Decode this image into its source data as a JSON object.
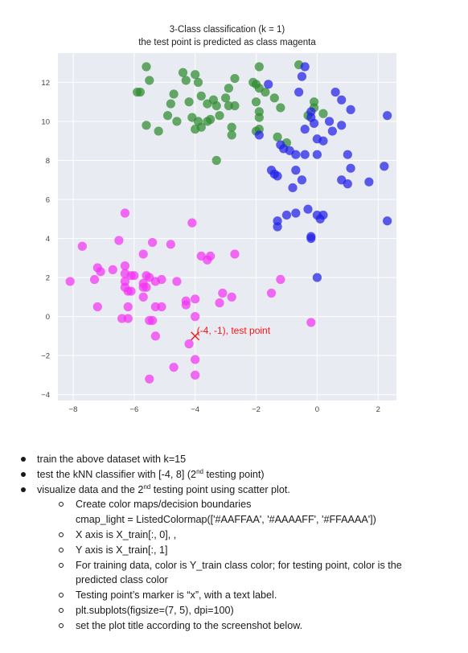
{
  "chart_data": {
    "type": "scatter",
    "title": "3-Class classification (k = 1)",
    "subtitle": "the test point is predicted as class magenta",
    "xlim": [
      -8.5,
      2.6
    ],
    "ylim": [
      -4.3,
      13.5
    ],
    "x_ticks": [
      -8,
      -6,
      -4,
      -2,
      0,
      2
    ],
    "y_ticks": [
      -4,
      -2,
      0,
      2,
      4,
      6,
      8,
      10,
      12
    ],
    "x_tick_labels": [
      "−8",
      "−6",
      "−4",
      "−2",
      "0",
      "2"
    ],
    "y_tick_labels": [
      "−4",
      "−2",
      "0",
      "2",
      "4",
      "6",
      "8",
      "10",
      "12"
    ],
    "grid": true,
    "background_color": "#E9EBF2",
    "series": [
      {
        "color": "#2E8B2E",
        "points": [
          [
            -5.6,
            12.8
          ],
          [
            -5.5,
            12.1
          ],
          [
            -4.4,
            12.5
          ],
          [
            -4.3,
            12.1
          ],
          [
            -4.0,
            12.4
          ],
          [
            -3.9,
            12.0
          ],
          [
            -5.9,
            11.5
          ],
          [
            -5.8,
            11.5
          ],
          [
            -4.7,
            11.4
          ],
          [
            -4.8,
            10.9
          ],
          [
            -4.2,
            11.0
          ],
          [
            -3.8,
            11.3
          ],
          [
            -3.6,
            10.9
          ],
          [
            -3.4,
            11.1
          ],
          [
            -3.3,
            10.8
          ],
          [
            -3.0,
            11.2
          ],
          [
            -2.9,
            11.7
          ],
          [
            -2.7,
            12.2
          ],
          [
            -2.9,
            10.8
          ],
          [
            -2.7,
            10.8
          ],
          [
            -2.1,
            12.0
          ],
          [
            -2.0,
            11.9
          ],
          [
            -1.9,
            11.7
          ],
          [
            -1.9,
            12.8
          ],
          [
            -1.7,
            11.5
          ],
          [
            -1.4,
            11.2
          ],
          [
            -0.6,
            12.9
          ],
          [
            -2.0,
            11.0
          ],
          [
            -1.2,
            10.7
          ],
          [
            -1.9,
            10.5
          ],
          [
            -1.9,
            10.2
          ],
          [
            -0.1,
            11.0
          ],
          [
            -0.1,
            10.7
          ],
          [
            -0.3,
            10.3
          ],
          [
            0.2,
            10.4
          ],
          [
            -5.6,
            9.8
          ],
          [
            -5.2,
            9.5
          ],
          [
            -4.9,
            10.3
          ],
          [
            -4.6,
            10.0
          ],
          [
            -4.1,
            10.2
          ],
          [
            -3.9,
            10.0
          ],
          [
            -3.6,
            10.0
          ],
          [
            -3.5,
            10.1
          ],
          [
            -3.2,
            10.3
          ],
          [
            -4.0,
            9.6
          ],
          [
            -3.8,
            9.7
          ],
          [
            -2.8,
            9.7
          ],
          [
            -2.8,
            9.3
          ],
          [
            -2.0,
            9.5
          ],
          [
            -1.9,
            9.6
          ],
          [
            -1.3,
            9.2
          ],
          [
            -1.0,
            8.9
          ],
          [
            -3.3,
            8.0
          ]
        ]
      },
      {
        "color": "#2020E6",
        "points": [
          [
            -0.4,
            12.8
          ],
          [
            -0.5,
            12.3
          ],
          [
            -1.6,
            11.9
          ],
          [
            -0.6,
            11.5
          ],
          [
            0.6,
            11.5
          ],
          [
            0.8,
            11.1
          ],
          [
            1.1,
            10.6
          ],
          [
            -0.2,
            10.5
          ],
          [
            -0.2,
            10.2
          ],
          [
            0.4,
            10.0
          ],
          [
            -0.4,
            9.6
          ],
          [
            -0.1,
            9.9
          ],
          [
            0.5,
            9.5
          ],
          [
            0.8,
            9.8
          ],
          [
            2.3,
            10.3
          ],
          [
            0.0,
            9.1
          ],
          [
            0.2,
            9.0
          ],
          [
            -1.9,
            9.3
          ],
          [
            -1.2,
            8.8
          ],
          [
            -1.1,
            8.6
          ],
          [
            -0.9,
            8.5
          ],
          [
            -0.7,
            8.3
          ],
          [
            -0.4,
            8.3
          ],
          [
            0.0,
            8.3
          ],
          [
            1.0,
            8.3
          ],
          [
            -1.5,
            7.5
          ],
          [
            -1.4,
            7.3
          ],
          [
            -1.3,
            7.2
          ],
          [
            -0.7,
            7.5
          ],
          [
            -0.5,
            7.0
          ],
          [
            -0.8,
            6.6
          ],
          [
            1.1,
            7.6
          ],
          [
            0.8,
            7.0
          ],
          [
            1.0,
            6.8
          ],
          [
            1.7,
            6.9
          ],
          [
            2.2,
            7.7
          ],
          [
            2.3,
            4.9
          ],
          [
            -1.0,
            5.2
          ],
          [
            -1.3,
            4.9
          ],
          [
            -1.3,
            4.6
          ],
          [
            -0.7,
            5.3
          ],
          [
            -0.3,
            5.5
          ],
          [
            0.0,
            5.2
          ],
          [
            0.2,
            5.2
          ],
          [
            0.1,
            5.0
          ],
          [
            -0.2,
            4.1
          ],
          [
            -0.2,
            4.0
          ],
          [
            0.0,
            2.0
          ]
        ]
      },
      {
        "color": "#F233F2",
        "points": [
          [
            -6.3,
            5.3
          ],
          [
            -7.7,
            3.6
          ],
          [
            -6.5,
            3.9
          ],
          [
            -5.7,
            3.2
          ],
          [
            -5.4,
            3.8
          ],
          [
            -4.8,
            3.7
          ],
          [
            -4.1,
            4.8
          ],
          [
            -7.2,
            2.5
          ],
          [
            -7.1,
            2.3
          ],
          [
            -6.7,
            2.4
          ],
          [
            -6.3,
            2.6
          ],
          [
            -6.3,
            2.2
          ],
          [
            -6.1,
            2.1
          ],
          [
            -6.0,
            2.1
          ],
          [
            -5.6,
            2.1
          ],
          [
            -5.5,
            2.0
          ],
          [
            -5.7,
            1.7
          ],
          [
            -5.3,
            1.8
          ],
          [
            -5.1,
            1.9
          ],
          [
            -4.6,
            1.8
          ],
          [
            -6.3,
            1.8
          ],
          [
            -6.3,
            1.5
          ],
          [
            -6.2,
            1.3
          ],
          [
            -5.7,
            1.5
          ],
          [
            -5.6,
            1.5
          ],
          [
            -6.1,
            1.3
          ],
          [
            -5.7,
            1.0
          ],
          [
            -8.1,
            1.8
          ],
          [
            -7.3,
            1.9
          ],
          [
            -7.2,
            0.5
          ],
          [
            -6.2,
            0.5
          ],
          [
            -5.3,
            0.5
          ],
          [
            -6.4,
            -0.1
          ],
          [
            -6.2,
            -0.1
          ],
          [
            -5.5,
            -0.2
          ],
          [
            -5.4,
            -0.2
          ],
          [
            -3.8,
            3.1
          ],
          [
            -3.6,
            2.9
          ],
          [
            -3.5,
            3.1
          ],
          [
            -2.7,
            3.2
          ],
          [
            -4.3,
            0.6
          ],
          [
            -4.3,
            0.8
          ],
          [
            -4.0,
            0.9
          ],
          [
            -3.1,
            1.2
          ],
          [
            -3.2,
            0.7
          ],
          [
            -2.8,
            1.0
          ],
          [
            -4.0,
            0.0
          ],
          [
            -5.1,
            0.5
          ],
          [
            -5.3,
            -1.0
          ],
          [
            -4.2,
            -1.4
          ],
          [
            -4.0,
            -2.2
          ],
          [
            -4.7,
            -2.6
          ],
          [
            -4.0,
            -3.0
          ],
          [
            -5.5,
            -3.2
          ],
          [
            -1.5,
            1.2
          ],
          [
            -1.2,
            1.9
          ],
          [
            -0.2,
            -0.3
          ]
        ]
      }
    ],
    "test_point": {
      "x": -4,
      "y": -1,
      "color": "#FF1111",
      "marker": "x",
      "label": "(-4, -1), test point"
    }
  },
  "instructions": {
    "bullets": [
      {
        "text": "train the above dataset with k=15"
      },
      {
        "text_before": "test the kNN classifier with [-4, 8] (2",
        "sup": "nd",
        "text_after": " testing point)"
      },
      {
        "text": "visualize data and the 2",
        "sup": "nd",
        "text_after": " testing point using scatter plot."
      }
    ],
    "sub_items": [
      {
        "lines": [
          "Create color maps/decision boundaries",
          "cmap_light = ListedColormap(['#AAFFAA', '#AAAAFF', '#FFAAAA'])"
        ]
      },
      {
        "lines": [
          "X axis is X_train[:, 0], ,"
        ]
      },
      {
        "lines": [
          "Y axis is X_train[:, 1]"
        ]
      },
      {
        "lines": [
          "For training data, color is Y_train class color; for testing point, color is the",
          "predicted class color"
        ]
      },
      {
        "lines": [
          "Testing point’s marker is “x”, with a text label."
        ]
      },
      {
        "lines": [
          "plt.subplots(figsize=(7, 5), dpi=100)"
        ]
      },
      {
        "lines": [
          "set the plot title according to the screenshot below."
        ]
      }
    ]
  }
}
